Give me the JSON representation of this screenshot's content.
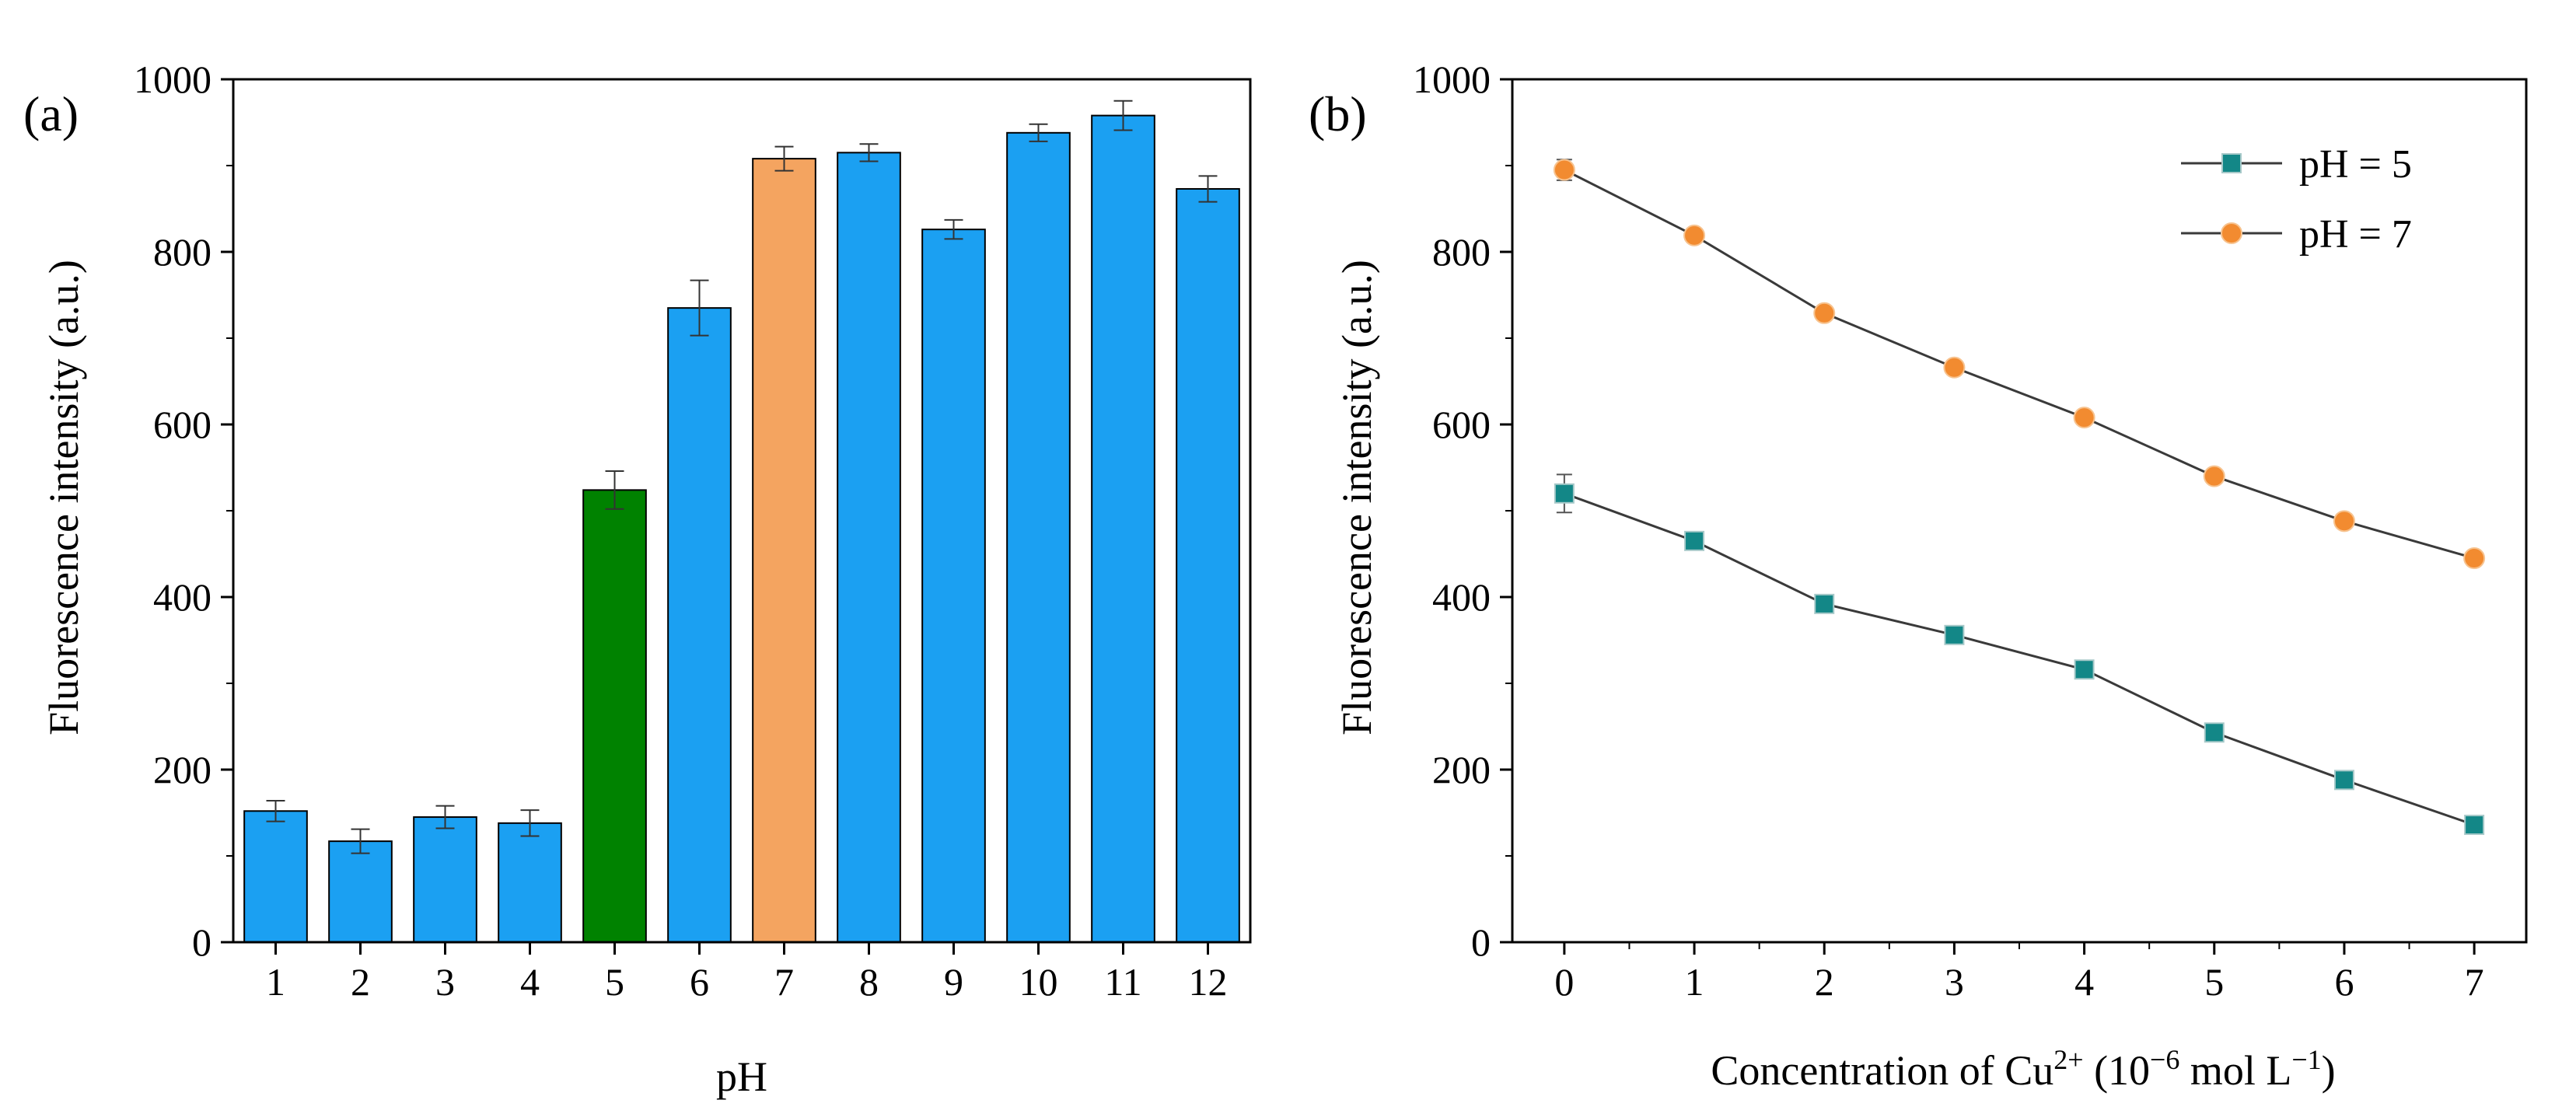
{
  "chart_data": [
    {
      "panel_label": "(a)",
      "type": "bar",
      "xlabel": "pH",
      "ylabel": "Fluorescence intensity (a.u.)",
      "ylim": [
        0,
        1000
      ],
      "yticks": [
        0,
        200,
        400,
        600,
        800,
        1000
      ],
      "categories": [
        "1",
        "2",
        "3",
        "4",
        "5",
        "6",
        "7",
        "8",
        "9",
        "10",
        "11",
        "12"
      ],
      "values": [
        152,
        117,
        145,
        138,
        524,
        735,
        908,
        915,
        826,
        938,
        958,
        873
      ],
      "errors": [
        12,
        14,
        13,
        15,
        22,
        32,
        14,
        10,
        11,
        10,
        17,
        15
      ],
      "colors": [
        "#1ba0f2",
        "#1ba0f2",
        "#1ba0f2",
        "#1ba0f2",
        "#008200",
        "#1ba0f2",
        "#f4a460",
        "#1ba0f2",
        "#1ba0f2",
        "#1ba0f2",
        "#1ba0f2",
        "#1ba0f2"
      ]
    },
    {
      "panel_label": "(b)",
      "type": "line",
      "xlabel_main": "Concentration of Cu",
      "xlabel_sup1": "2+",
      "xlabel_mid": " (10",
      "xlabel_sup2": "−6",
      "xlabel_mid2": " mol L",
      "xlabel_sup3": "−1",
      "xlabel_end": ")",
      "ylabel": "Fluorescence intensity (a.u.)",
      "xlim": [
        -0.4,
        7.4
      ],
      "ylim": [
        0,
        1000
      ],
      "xticks": [
        0,
        1,
        2,
        3,
        4,
        5,
        6,
        7
      ],
      "yticks": [
        0,
        200,
        400,
        600,
        800,
        1000
      ],
      "x": [
        0,
        1,
        2,
        3,
        4,
        5,
        6,
        7
      ],
      "series": [
        {
          "name": "pH  = 5",
          "marker": "square",
          "color": "#138787",
          "values": [
            520,
            465,
            392,
            356,
            316,
            243,
            188,
            136
          ],
          "errors": [
            22,
            8,
            6,
            6,
            6,
            5,
            5,
            5
          ]
        },
        {
          "name": "pH  = 7",
          "marker": "circle",
          "color": "#f28b30",
          "values": [
            895,
            819,
            729,
            666,
            608,
            540,
            488,
            445
          ],
          "errors": [
            12,
            8,
            6,
            6,
            6,
            5,
            5,
            5
          ]
        }
      ],
      "legend_position": "top-right"
    }
  ]
}
